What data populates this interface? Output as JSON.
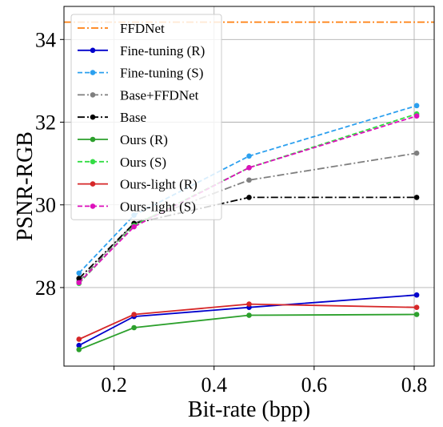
{
  "chart_data": {
    "type": "line",
    "xlabel": "Bit-rate (bpp)",
    "ylabel": "PSNR-RGB",
    "xlim": [
      0.1,
      0.84
    ],
    "ylim": [
      26.1,
      34.8
    ],
    "xticks": [
      0.2,
      0.4,
      0.6,
      0.8
    ],
    "yticks": [
      28,
      30,
      32,
      34
    ],
    "grid": true,
    "legend_position": "top-left",
    "series": [
      {
        "name": "FFDNet",
        "color": "#ff7f0e",
        "style": "dashdot",
        "marker": false,
        "hline": 34.42,
        "x": [],
        "y": []
      },
      {
        "name": "Fine-tuning (R)",
        "color": "#0000cc",
        "style": "solid",
        "marker": true,
        "x": [
          0.13,
          0.24,
          0.47,
          0.805
        ],
        "y": [
          26.6,
          27.3,
          27.52,
          27.82
        ]
      },
      {
        "name": "Fine-tuning (S)",
        "color": "#2ca0ef",
        "style": "dashed",
        "marker": true,
        "x": [
          0.13,
          0.24,
          0.47,
          0.805
        ],
        "y": [
          28.35,
          29.75,
          31.18,
          32.4
        ]
      },
      {
        "name": "Base+FFDNet",
        "color": "#7f7f7f",
        "style": "dashdot",
        "marker": true,
        "x": [
          0.13,
          0.24,
          0.47,
          0.805
        ],
        "y": [
          28.15,
          29.55,
          30.6,
          31.25
        ]
      },
      {
        "name": "Base",
        "color": "#000000",
        "style": "dashdot",
        "marker": true,
        "x": [
          0.13,
          0.24,
          0.47,
          0.805
        ],
        "y": [
          28.22,
          29.55,
          30.18,
          30.18
        ]
      },
      {
        "name": "Ours (R)",
        "color": "#2ca02c",
        "style": "solid",
        "marker": true,
        "x": [
          0.13,
          0.24,
          0.47,
          0.805
        ],
        "y": [
          26.5,
          27.03,
          27.33,
          27.35
        ]
      },
      {
        "name": "Ours (S)",
        "color": "#33dd44",
        "style": "dashed",
        "marker": true,
        "x": [
          0.13,
          0.24,
          0.47,
          0.805
        ],
        "y": [
          28.1,
          29.5,
          30.9,
          32.2
        ]
      },
      {
        "name": "Ours-light (R)",
        "color": "#d62728",
        "style": "solid",
        "marker": true,
        "x": [
          0.13,
          0.24,
          0.47,
          0.805
        ],
        "y": [
          26.75,
          27.35,
          27.6,
          27.52
        ]
      },
      {
        "name": "Ours-light (S)",
        "color": "#dd11bb",
        "style": "dashed",
        "marker": true,
        "x": [
          0.13,
          0.24,
          0.47,
          0.805
        ],
        "y": [
          28.12,
          29.47,
          30.9,
          32.15
        ]
      }
    ]
  }
}
